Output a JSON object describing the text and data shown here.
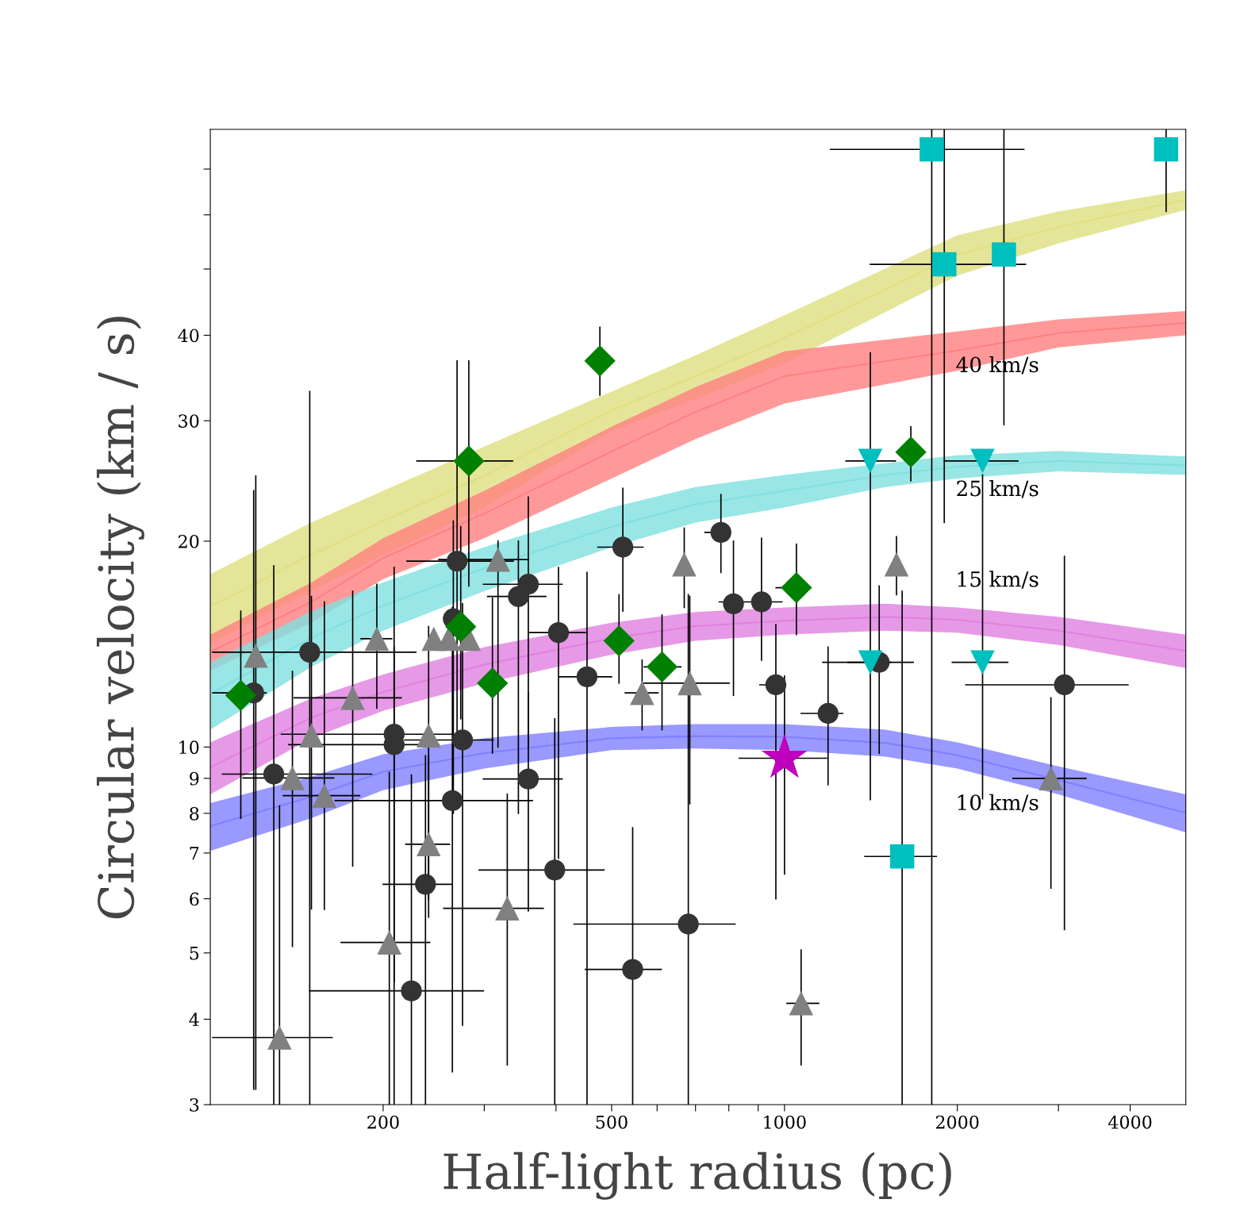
{
  "chart_data": {
    "type": "scatter",
    "xlabel": "Half-light radius (pc)",
    "ylabel": "Circular velocity (km / s)",
    "log": "xy",
    "xlim": [
      100,
      5000
    ],
    "ylim": [
      3,
      80
    ],
    "xticks": [
      200,
      {
        "value": 300,
        "label": null
      },
      {
        "value": 400,
        "label": null
      },
      500,
      {
        "value": 600,
        "label": null
      },
      {
        "value": 700,
        "label": null
      },
      {
        "value": 800,
        "label": null
      },
      {
        "value": 900,
        "label": null
      },
      1000,
      2000,
      {
        "value": 3000,
        "label": null
      },
      4000
    ],
    "yticks": [
      3,
      4,
      5,
      6,
      7,
      8,
      9,
      10,
      20,
      30,
      40,
      {
        "value": 50,
        "label": null
      },
      {
        "value": 60,
        "label": null
      },
      {
        "value": 70,
        "label": null
      }
    ],
    "grid": false,
    "legend": false,
    "annotations": [
      "40 km/s",
      "25 km/s",
      "15 km/s",
      "10 km/s"
    ],
    "series": [
      {
        "type": "line",
        "color": "#dfdf80",
        "x": [
          100,
          150,
          200,
          300,
          500,
          700,
          1000,
          2000,
          3000,
          5000
        ],
        "values": [
          16.05,
          19.1,
          21.4,
          24.95,
          31.05,
          34.85,
          39.6,
          52.45,
          57.6,
          63.1
        ],
        "lower": [
          14.2,
          16.9,
          19.1,
          22.4,
          29.0,
          32.3,
          36.4,
          48.9,
          54.5,
          61.0
        ],
        "upper": [
          17.9,
          21.3,
          23.7,
          27.5,
          33.1,
          37.4,
          42.8,
          56.0,
          60.7,
          65.2
        ]
      },
      {
        "type": "line",
        "color": "#ff8080",
        "x": [
          100,
          150,
          200,
          300,
          500,
          700,
          1000,
          2000,
          3000,
          5000
        ],
        "values": [
          13.77,
          16.3,
          18.9,
          21.95,
          27.05,
          30.9,
          34.85,
          38.0,
          40.3,
          41.7
        ],
        "lower": [
          12.94,
          15.2,
          17.6,
          20.2,
          24.7,
          28.2,
          31.8,
          35.5,
          38.4,
          40.0
        ],
        "upper": [
          14.6,
          17.4,
          20.2,
          23.7,
          29.4,
          33.6,
          37.9,
          40.5,
          42.2,
          43.4
        ]
      },
      {
        "type": "line",
        "color": "#80e0e0",
        "x": [
          100,
          150,
          200,
          300,
          500,
          700,
          1000,
          1500,
          2000,
          3000,
          5000
        ],
        "values": [
          11.95,
          14.45,
          16.1,
          18.25,
          21.0,
          22.65,
          23.7,
          25.0,
          25.7,
          26.2,
          25.8
        ],
        "lower": [
          10.6,
          13.1,
          14.8,
          16.9,
          19.6,
          21.3,
          22.4,
          24.0,
          24.7,
          25.3,
          25.0
        ],
        "upper": [
          13.3,
          15.8,
          17.4,
          19.6,
          22.4,
          24.0,
          25.0,
          26.0,
          26.7,
          27.1,
          26.6
        ]
      },
      {
        "type": "line",
        "color": "#e080e0",
        "x": [
          100,
          150,
          200,
          300,
          500,
          700,
          1000,
          1500,
          2000,
          3000,
          5000
        ],
        "values": [
          9.345,
          11.04,
          12.035,
          13.2,
          14.425,
          15.025,
          15.3,
          15.5,
          15.35,
          14.8,
          13.825
        ],
        "lower": [
          8.53,
          10.3,
          11.3,
          12.4,
          13.65,
          14.3,
          14.6,
          14.8,
          14.7,
          14.1,
          13.05
        ],
        "upper": [
          10.16,
          11.78,
          12.77,
          14.0,
          15.2,
          15.75,
          16.0,
          16.2,
          16.0,
          15.5,
          14.6
        ]
      },
      {
        "type": "line",
        "color": "#8080ff",
        "x": [
          100,
          150,
          200,
          300,
          500,
          700,
          1000,
          1500,
          2000,
          3000,
          5000
        ],
        "values": [
          7.665,
          8.46,
          9.205,
          9.8,
          10.3,
          10.375,
          10.35,
          10.14,
          9.73,
          8.95,
          8.015
        ],
        "lower": [
          7.05,
          7.87,
          8.65,
          9.3,
          9.9,
          9.95,
          9.9,
          9.68,
          9.3,
          8.53,
          7.5
        ],
        "upper": [
          8.28,
          9.05,
          9.76,
          10.3,
          10.7,
          10.8,
          10.8,
          10.6,
          10.16,
          9.37,
          8.53
        ]
      },
      {
        "marker": "circle",
        "color": "#333333",
        "x": [
          119,
          129,
          149,
          209,
          209,
          237,
          224,
          264,
          275,
          358,
          398,
          269,
          265,
          358,
          344,
          404,
          453,
          523,
          775,
          815,
          912,
          966,
          1191,
          1462,
          3073,
          680,
          544
        ],
        "values": [
          12.0,
          9.13,
          13.76,
          10.44,
          10.08,
          6.3,
          4.4,
          8.35,
          10.24,
          8.98,
          6.61,
          18.7,
          15.4,
          17.3,
          16.6,
          14.7,
          12.67,
          19.6,
          20.6,
          16.2,
          16.3,
          12.33,
          11.2,
          13.3,
          12.33,
          5.51,
          4.73
        ],
        "xerrors": [
          [
            101,
            125
          ],
          [
            105,
            191
          ],
          [
            101,
            228
          ],
          [
            133,
            263
          ],
          [
            137,
            250
          ],
          [
            200,
            264
          ],
          [
            149,
            299
          ],
          [
            165,
            364
          ],
          [
            218,
            311
          ],
          [
            299,
            410
          ],
          [
            294,
            485
          ],
          [
            220,
            337
          ],
          null,
          [
            299,
            410
          ],
          [
            304,
            384
          ],
          [
            360,
            450
          ],
          [
            405,
            500
          ],
          [
            473,
            567
          ],
          [
            727,
            800
          ],
          null,
          [
            770,
            990
          ],
          [
            906,
            1000
          ],
          [
            1069,
            1263
          ],
          [
            1166,
            1676
          ],
          [
            2069,
            3966
          ],
          [
            430,
            820
          ],
          [
            450,
            610
          ]
        ],
        "errors": [
          [
            3.16,
            23.7
          ],
          [
            3.0,
            18.4
          ],
          [
            3.0,
            33.1
          ],
          [
            4.54,
            18.3
          ],
          [
            3.0,
            14.0
          ],
          [
            3.0,
            9.71
          ],
          [
            3.0,
            9.1
          ],
          [
            3.35,
            16.0
          ],
          [
            3.92,
            16.2
          ],
          [
            5.76,
            12.0
          ],
          [
            3.0,
            11.0
          ],
          [
            10.0,
            36.7
          ],
          [
            8.0,
            21.4
          ],
          [
            10.0,
            23.2
          ],
          [
            8.0,
            20.0
          ],
          [
            6.88,
            18.3
          ],
          [
            3.0,
            18.0
          ],
          [
            15.8,
            23.9
          ],
          [
            18.0,
            23.4
          ],
          [
            11.9,
            20.0
          ],
          [
            13.4,
            20.2
          ],
          [
            6.0,
            15.1
          ],
          [
            8.81,
            14.0
          ],
          [
            9.79,
            17.2
          ],
          [
            5.41,
            19.0
          ],
          [
            3.0,
            16.7
          ],
          [
            3.0,
            7.62
          ]
        ]
      },
      {
        "marker": "triangle",
        "color": "#808080",
        "x": [
          120,
          132,
          139,
          150,
          158,
          177,
          195,
          205,
          240,
          240,
          245,
          260,
          282,
          317,
          329,
          565,
          669,
          684,
          1069,
          1567,
          2911
        ],
        "values": [
          13.6,
          3.76,
          9.01,
          10.4,
          8.49,
          11.8,
          14.4,
          5.18,
          10.4,
          7.21,
          14.4,
          14.4,
          14.4,
          18.8,
          5.81,
          12.0,
          18.5,
          12.4,
          4.22,
          18.5,
          9.0
        ],
        "xerrors": [
          null,
          [
            101,
            163
          ],
          [
            114,
            164
          ],
          null,
          [
            134,
            182
          ],
          [
            140,
            215
          ],
          [
            183,
            207
          ],
          [
            169,
            241
          ],
          null,
          [
            219,
            261
          ],
          null,
          null,
          null,
          [
            250,
            358
          ],
          [
            255,
            380
          ],
          [
            528,
            602
          ],
          null,
          [
            569,
            801
          ],
          [
            1010,
            1147
          ],
          null,
          [
            2500,
            3350
          ]
        ],
        "errors": [
          [
            3.16,
            24.9
          ],
          [
            3.0,
            8.2
          ],
          [
            5.11,
            12.9
          ],
          [
            5.8,
            16.6
          ],
          [
            5.79,
            16.3
          ],
          [
            6.7,
            16.9
          ],
          [
            11.4,
            17.3
          ],
          [
            3.0,
            9.18
          ],
          [
            6.0,
            15.0
          ],
          [
            5.64,
            9.7
          ],
          null,
          null,
          null,
          [
            10.0,
            20.0
          ],
          [
            3.43,
            8.53
          ],
          [
            10.6,
            13.4
          ],
          [
            16.0,
            20.9
          ],
          [
            8.26,
            16.6
          ],
          [
            3.43,
            5.05
          ],
          [
            16.7,
            20.3
          ],
          [
            6.22,
            11.8
          ]
        ]
      },
      {
        "marker": "diamond",
        "color": "#008000",
        "x": [
          113,
          282,
          273,
          310,
          477,
          515,
          612,
          1049,
          1660
        ],
        "values": [
          11.9,
          26.2,
          15.0,
          12.4,
          36.7,
          14.3,
          13.1,
          17.1,
          27.0
        ],
        "xerrors": [
          null,
          [
            229,
            336
          ],
          null,
          null,
          null,
          null,
          [
            570,
            660
          ],
          [
            967,
            1111
          ],
          null
        ],
        "errors": [
          [
            7.87,
            15.8
          ],
          [
            17.2,
            36.7
          ],
          [
            11.0,
            21.0
          ],
          [
            9.8,
            16.5
          ],
          [
            32.7,
            41.1
          ],
          [
            12.4,
            16.7
          ],
          [
            10.6,
            15.6
          ],
          [
            14.6,
            19.8
          ],
          [
            24.5,
            29.4
          ]
        ]
      },
      {
        "marker": "square",
        "color": "#00bfbf",
        "x": [
          1805,
          4620,
          1898,
          2411,
          1603
        ],
        "values": [
          74.8,
          74.8,
          50.8,
          52.5,
          6.92
        ],
        "xerrors": [
          [
            1203,
            2612
          ],
          null,
          [
            1411,
            2629
          ],
          null,
          [
            1380,
            1839
          ]
        ],
        "errors": [
          [
            3.0,
            80
          ],
          [
            60.7,
            80
          ],
          [
            21.3,
            80
          ],
          [
            29.6,
            80
          ],
          [
            3.0,
            16.9
          ]
        ]
      },
      {
        "marker": "triangle_down",
        "color": "#00bfbf",
        "x": [
          1411,
          2213,
          1411,
          2213
        ],
        "values": [
          26.2,
          26.2,
          13.3,
          13.3
        ],
        "xerrors": [
          [
            1280,
            1560
          ],
          [
            1900,
            2550
          ],
          [
            1290,
            1530
          ],
          [
            1960,
            2449
          ]
        ],
        "errors": [
          [
            8.38,
            37.7
          ],
          null,
          null,
          [
            8.4,
            25.0
          ]
        ]
      },
      {
        "marker": "star",
        "color": "#bf00bf",
        "x": [
          1000
        ],
        "values": [
          9.63
        ],
        "xerrors": [
          [
            834,
            1184
          ]
        ],
        "errors": [
          [
            6.52,
            12.7
          ]
        ]
      }
    ]
  }
}
